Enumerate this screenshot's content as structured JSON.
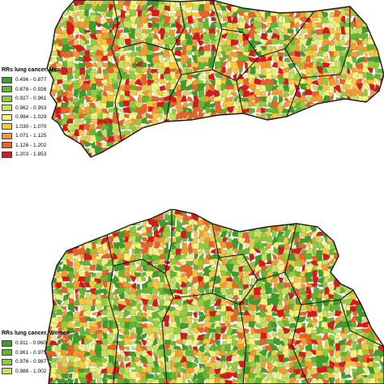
{
  "maps": [
    {
      "legend": {
        "title": "RRs lung cancer. Men",
        "classes": [
          {
            "label": "0.496 - 0.877",
            "color": "#3e9d2a"
          },
          {
            "label": "0.878 - 0.926",
            "color": "#63b631"
          },
          {
            "label": "0.927 - 0.961",
            "color": "#92cc3c"
          },
          {
            "label": "0.962 - 0.993",
            "color": "#c4e25e"
          },
          {
            "label": "0.994 - 1.029",
            "color": "#f4f37c"
          },
          {
            "label": "1.030 - 1.070",
            "color": "#f8c73e"
          },
          {
            "label": "1.071 - 1.125",
            "color": "#f39a33"
          },
          {
            "label": "1.126 - 1.202",
            "color": "#ec6128"
          },
          {
            "label": "1.203 - 1.853",
            "color": "#d7191c"
          }
        ]
      }
    },
    {
      "legend": {
        "title": "RRs lung cancer. Women",
        "classes": [
          {
            "label": "0.911 - 0.960",
            "color": "#3e9d2a"
          },
          {
            "label": "0.961 - 0.975",
            "color": "#63b631"
          },
          {
            "label": "0.976 - 0.987",
            "color": "#92cc3c"
          },
          {
            "label": "0.988 - 1.002",
            "color": "#c4e25e"
          }
        ]
      }
    }
  ]
}
